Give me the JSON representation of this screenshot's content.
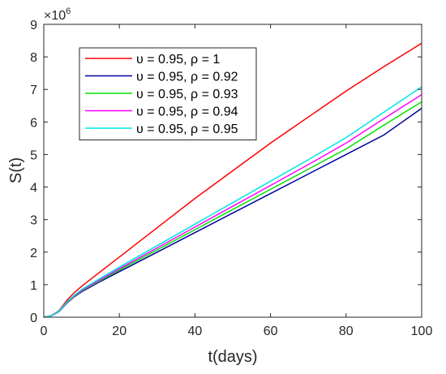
{
  "chart_data": {
    "type": "line",
    "title": "",
    "xlabel": "t(days)",
    "ylabel": "S(t)",
    "xlim": [
      0,
      100
    ],
    "ylim": [
      0,
      9
    ],
    "y_multiplier": {
      "base": "×10",
      "exponent": "6"
    },
    "x_ticks": [
      0,
      20,
      40,
      60,
      80,
      100
    ],
    "y_ticks": [
      0,
      1,
      2,
      3,
      4,
      5,
      6,
      7,
      8,
      9
    ],
    "grid": false,
    "legend_position": "top-left",
    "series": [
      {
        "name": "υ = 0.95, ρ = 1",
        "color": "#ff0000",
        "x": [
          0,
          2,
          4,
          6,
          8,
          10,
          15,
          20,
          30,
          40,
          50,
          60,
          70,
          80,
          90,
          100
        ],
        "y": [
          0,
          0.05,
          0.2,
          0.5,
          0.75,
          0.95,
          1.4,
          1.85,
          2.75,
          3.65,
          4.5,
          5.35,
          6.15,
          6.95,
          7.7,
          8.42
        ]
      },
      {
        "name": "υ = 0.95, ρ = 0.92",
        "color": "#0000a0",
        "x": [
          0,
          2,
          4,
          6,
          8,
          10,
          15,
          20,
          30,
          40,
          50,
          60,
          70,
          80,
          90,
          100
        ],
        "y": [
          0,
          0.04,
          0.17,
          0.42,
          0.62,
          0.78,
          1.1,
          1.4,
          2.0,
          2.6,
          3.2,
          3.8,
          4.4,
          5.0,
          5.6,
          6.42
        ]
      },
      {
        "name": "υ = 0.95, ρ = 0.93",
        "color": "#00e000",
        "x": [
          0,
          2,
          4,
          6,
          8,
          10,
          15,
          20,
          30,
          40,
          50,
          60,
          70,
          80,
          90,
          100
        ],
        "y": [
          0,
          0.04,
          0.18,
          0.43,
          0.63,
          0.8,
          1.13,
          1.45,
          2.07,
          2.69,
          3.31,
          3.93,
          4.55,
          5.17,
          5.9,
          6.62
        ]
      },
      {
        "name": "υ = 0.95, ρ = 0.94",
        "color": "#ff00ff",
        "x": [
          0,
          2,
          4,
          6,
          8,
          10,
          15,
          20,
          30,
          40,
          50,
          60,
          70,
          80,
          90,
          100
        ],
        "y": [
          0,
          0.04,
          0.18,
          0.44,
          0.65,
          0.82,
          1.16,
          1.49,
          2.13,
          2.77,
          3.41,
          4.05,
          4.69,
          5.35,
          6.1,
          6.84
        ]
      },
      {
        "name": "υ = 0.95, ρ = 0.95",
        "color": "#00e5e5",
        "x": [
          0,
          2,
          4,
          6,
          8,
          10,
          15,
          20,
          30,
          40,
          50,
          60,
          70,
          80,
          90,
          100
        ],
        "y": [
          0,
          0.04,
          0.19,
          0.45,
          0.67,
          0.85,
          1.2,
          1.54,
          2.2,
          2.86,
          3.52,
          4.18,
          4.84,
          5.52,
          6.3,
          7.08
        ]
      }
    ]
  }
}
